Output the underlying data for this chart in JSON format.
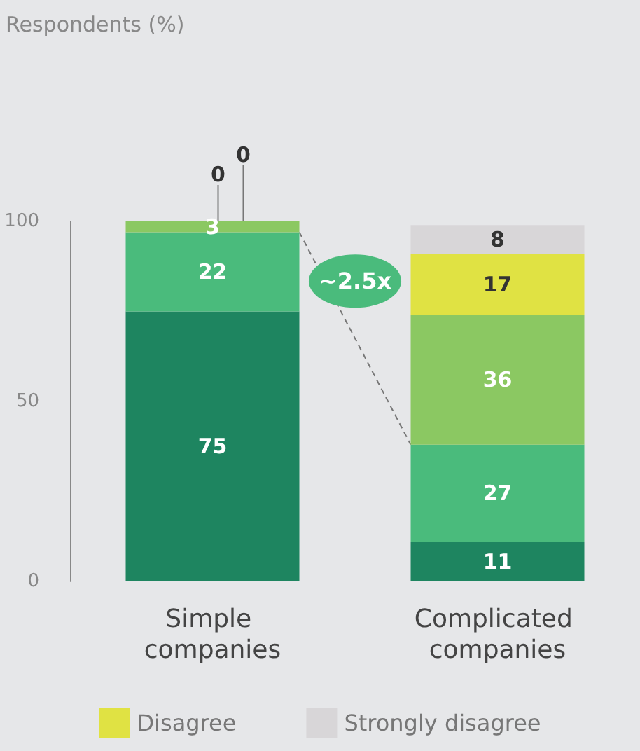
{
  "chart_data": {
    "type": "bar",
    "stacked": true,
    "categories": [
      "Simple companies",
      "Complicated companies"
    ],
    "series": [
      {
        "color": "#1e8560",
        "values": [
          75,
          11
        ]
      },
      {
        "color": "#4abb7c",
        "values": [
          22,
          27
        ]
      },
      {
        "color": "#8bc862",
        "values": [
          3,
          36
        ]
      },
      {
        "name": "Disagree",
        "color": "#e0e243",
        "values": [
          0,
          17
        ]
      },
      {
        "name": "Strongly disagree",
        "color": "#d8d6d8",
        "values": [
          0,
          8
        ]
      }
    ],
    "ylim": [
      0,
      100
    ],
    "yticks": [
      0,
      50,
      100
    ],
    "grid": false,
    "legend": "bottom",
    "data_labels": true,
    "annotations": [
      "Respondents (%)",
      "~2.5x"
    ]
  }
}
